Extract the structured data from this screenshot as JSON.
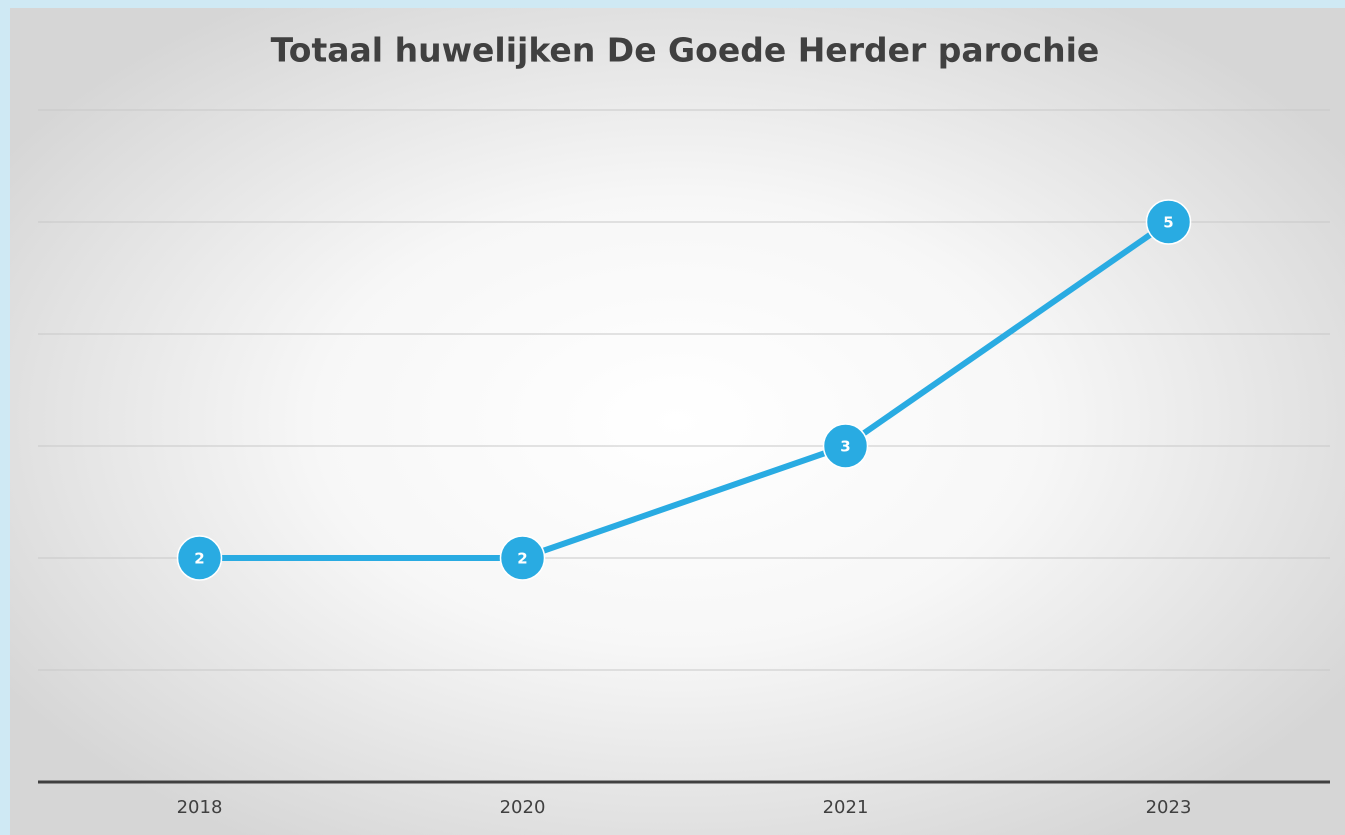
{
  "chart_data": {
    "type": "line",
    "title": "Totaal huwelijken De Goede Herder parochie",
    "categories": [
      "2018",
      "2020",
      "2021",
      "2023"
    ],
    "values": [
      2,
      2,
      3,
      5
    ],
    "color": "#29abe2",
    "ylim": [
      0,
      6
    ],
    "yticks": [
      0,
      1,
      2,
      3,
      4,
      5,
      6
    ],
    "grid": true
  }
}
